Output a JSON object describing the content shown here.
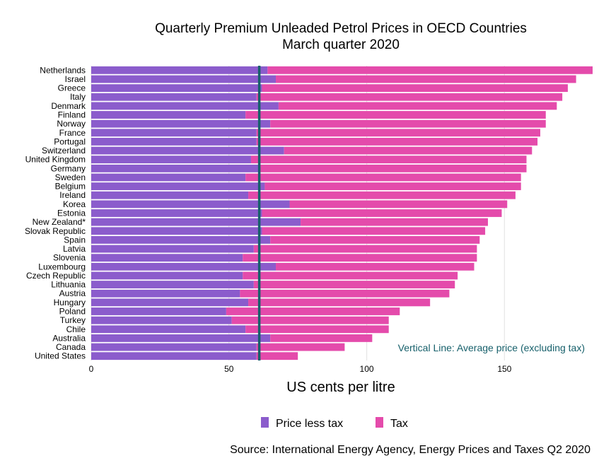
{
  "chart_data": {
    "type": "bar",
    "orientation": "horizontal",
    "stacked": true,
    "title": "Quarterly Premium Unleaded Petrol Prices in OECD Countries",
    "subtitle": "March quarter 2020",
    "xlabel": "US cents per litre",
    "ylabel": "",
    "xlim": [
      0,
      182
    ],
    "x_ticks": [
      0,
      50,
      100,
      150
    ],
    "grid": "vertical",
    "legend_position": "bottom",
    "source": "Source: International Energy Agency, Energy Prices and Taxes Q2 2020",
    "reference_line": {
      "value": 61,
      "label": "Vertical Line: Average price (excluding tax)",
      "color": "#17606b"
    },
    "categories": [
      "Netherlands",
      "Israel",
      "Greece",
      "Italy",
      "Denmark",
      "Finland",
      "Norway",
      "France",
      "Portugal",
      "Switzerland",
      "United Kingdom",
      "Germany",
      "Sweden",
      "Belgium",
      "Ireland",
      "Korea",
      "Estonia",
      "New Zealand*",
      "Slovak Republic",
      "Spain",
      "Latvia",
      "Slovenia",
      "Luxembourg",
      "Czech Republic",
      "Lithuania",
      "Austria",
      "Hungary",
      "Poland",
      "Turkey",
      "Chile",
      "Australia",
      "Canada",
      "United States"
    ],
    "series": [
      {
        "name": "Price less tax",
        "color": "#8b5ccc",
        "values": [
          64,
          67,
          62,
          60,
          68,
          56,
          65,
          60,
          60,
          70,
          58,
          61,
          56,
          63,
          57,
          72,
          62,
          76,
          62,
          65,
          59,
          55,
          67,
          55,
          59,
          54,
          57,
          49,
          51,
          56,
          65,
          60,
          60
        ]
      },
      {
        "name": "Tax",
        "color": "#e44bab",
        "values": [
          118,
          109,
          111,
          111,
          101,
          109,
          100,
          103,
          102,
          90,
          100,
          97,
          100,
          93,
          97,
          79,
          87,
          68,
          81,
          76,
          81,
          85,
          72,
          78,
          73,
          76,
          66,
          63,
          57,
          52,
          37,
          32,
          15
        ]
      }
    ]
  }
}
